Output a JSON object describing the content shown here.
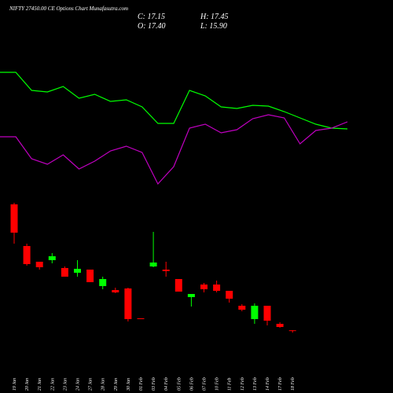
{
  "chart_data": {
    "type": "candlestick",
    "title": "NIFTY 27450.00 CE Options Chart Munafasutra.com",
    "ohlc_labels": [
      "C: 17.15",
      "H: 17.45",
      "O: 17.40",
      "L: 15.90"
    ],
    "categories": [
      "19 Jan",
      "20 Jan",
      "21 Jan",
      "22 Jan",
      "23 Jan",
      "24 Jan",
      "27 Jan",
      "28 Jan",
      "29 Jan",
      "30 Jan",
      "01 Feb",
      "03 Feb",
      "04 Feb",
      "05 Feb",
      "06 Feb",
      "07 Feb",
      "10 Feb",
      "11 Feb",
      "12 Feb",
      "13 Feb",
      "14 Feb",
      "17 Feb",
      "18 Feb"
    ],
    "open": [
      97.5,
      71,
      61,
      62,
      57,
      54,
      56,
      45.5,
      43,
      44,
      25,
      58,
      56,
      50,
      38.5,
      46.5,
      46.5,
      42.5,
      33,
      24.5,
      33,
      21.5,
      17.4
    ],
    "high": [
      98.5,
      72.5,
      61,
      66.5,
      58,
      62,
      56,
      51.5,
      44.5,
      44.5,
      25,
      80,
      61,
      50,
      40.5,
      47.5,
      49,
      42.5,
      34,
      34.5,
      33,
      22.5,
      17.45
    ],
    "low": [
      72.5,
      58.5,
      56,
      60,
      51.5,
      51.5,
      48,
      43.5,
      41,
      23,
      24.5,
      57.5,
      51.5,
      42,
      32.5,
      41.5,
      41.5,
      35,
      29.5,
      21.5,
      20.5,
      19,
      15.9
    ],
    "close": [
      79.5,
      59.5,
      57.5,
      64.5,
      51.5,
      56.5,
      48,
      50,
      41.5,
      24.5,
      24.5,
      60.5,
      55,
      42,
      40.5,
      43.5,
      42.5,
      37.5,
      30.5,
      33,
      23.5,
      19.5,
      17.15
    ],
    "up_color": "#00ff00",
    "down_color": "#ff0000",
    "ylim": [
      0,
      200
    ],
    "series": [
      {
        "color": "#00ff00",
        "values": [
          181.5,
          181.5,
          170,
          169,
          172.5,
          165,
          167.5,
          163,
          164,
          159.5,
          149,
          149,
          170,
          166.5,
          159.5,
          158.5,
          160.5,
          160,
          156.5,
          152.5,
          148.5,
          146,
          145.5
        ]
      },
      {
        "color": "#c000c0",
        "values": [
          140.5,
          140.5,
          126.5,
          123,
          129,
          120,
          125,
          131.5,
          134.5,
          130.5,
          110.5,
          121.5,
          146,
          148.5,
          143,
          145,
          152,
          154.5,
          152.5,
          136,
          144.5,
          146,
          150
        ]
      }
    ]
  }
}
